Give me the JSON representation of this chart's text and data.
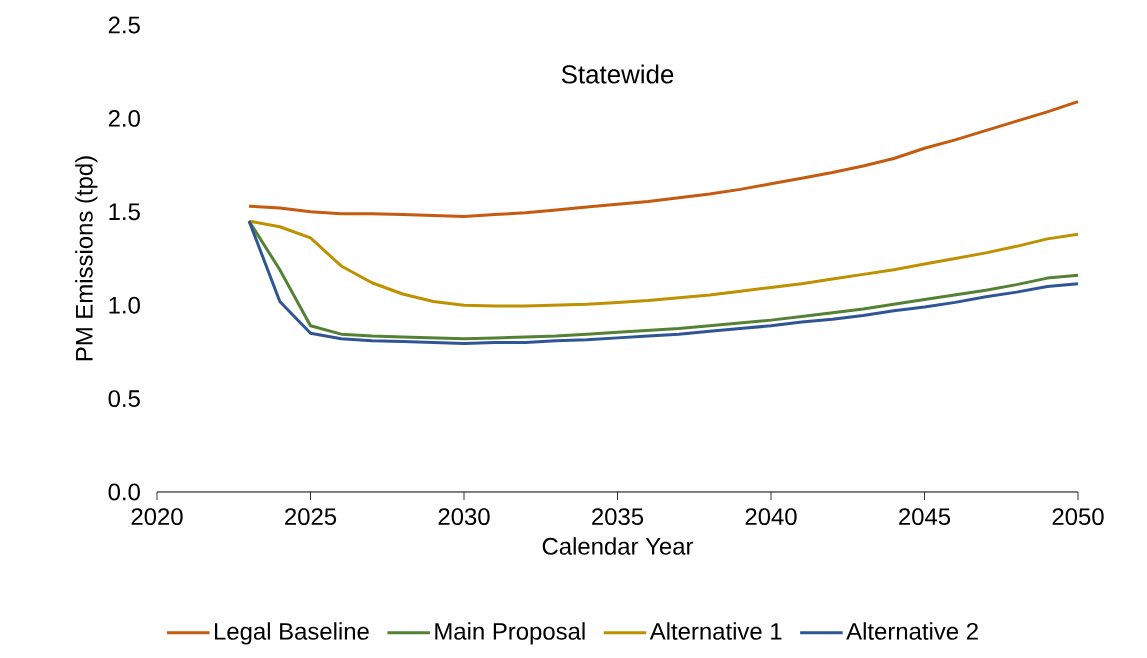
{
  "chart_data": {
    "type": "line",
    "title": "Statewide",
    "xlabel": "Calendar Year",
    "ylabel": "PM Emissions (tpd)",
    "x": [
      2023,
      2024,
      2025,
      2026,
      2027,
      2028,
      2029,
      2030,
      2031,
      2032,
      2033,
      2034,
      2035,
      2036,
      2037,
      2038,
      2039,
      2040,
      2041,
      2042,
      2043,
      2044,
      2045,
      2046,
      2047,
      2048,
      2049,
      2050
    ],
    "series": [
      {
        "name": "Legal Baseline",
        "color": "#c55a11",
        "values": [
          1.53,
          1.52,
          1.5,
          1.49,
          1.49,
          1.485,
          1.48,
          1.475,
          1.485,
          1.495,
          1.51,
          1.525,
          1.54,
          1.555,
          1.575,
          1.595,
          1.62,
          1.65,
          1.68,
          1.71,
          1.745,
          1.785,
          1.84,
          1.885,
          1.935,
          1.985,
          2.035,
          2.09
        ]
      },
      {
        "name": "Main Proposal",
        "color": "#548235",
        "values": [
          1.45,
          1.19,
          0.89,
          0.845,
          0.835,
          0.83,
          0.825,
          0.82,
          0.825,
          0.83,
          0.835,
          0.845,
          0.855,
          0.865,
          0.875,
          0.89,
          0.905,
          0.92,
          0.94,
          0.96,
          0.98,
          1.005,
          1.03,
          1.055,
          1.08,
          1.11,
          1.145,
          1.16
        ]
      },
      {
        "name": "Alternative 1",
        "color": "#bf9000",
        "values": [
          1.45,
          1.42,
          1.36,
          1.21,
          1.12,
          1.06,
          1.02,
          1.0,
          0.995,
          0.995,
          1.0,
          1.005,
          1.015,
          1.025,
          1.04,
          1.055,
          1.075,
          1.095,
          1.115,
          1.14,
          1.165,
          1.19,
          1.22,
          1.25,
          1.28,
          1.315,
          1.355,
          1.38
        ]
      },
      {
        "name": "Alternative 2",
        "color": "#2f5597",
        "values": [
          1.45,
          1.02,
          0.85,
          0.82,
          0.81,
          0.805,
          0.8,
          0.795,
          0.8,
          0.8,
          0.81,
          0.815,
          0.825,
          0.835,
          0.845,
          0.86,
          0.875,
          0.89,
          0.91,
          0.925,
          0.945,
          0.97,
          0.99,
          1.015,
          1.045,
          1.07,
          1.1,
          1.115
        ]
      }
    ],
    "xlim": [
      2020,
      2050
    ],
    "ylim": [
      0,
      2.5
    ],
    "xticks": [
      2020,
      2025,
      2030,
      2035,
      2040,
      2045,
      2050
    ],
    "yticks": [
      {
        "value": 0,
        "label": "0.0"
      },
      0.5,
      {
        "value": 1,
        "label": "1.0"
      },
      1.5,
      {
        "value": 2,
        "label": "2.0"
      },
      2.5
    ],
    "legend": "bottom",
    "grid": false,
    "marker": "none",
    "line_style": "solid"
  }
}
